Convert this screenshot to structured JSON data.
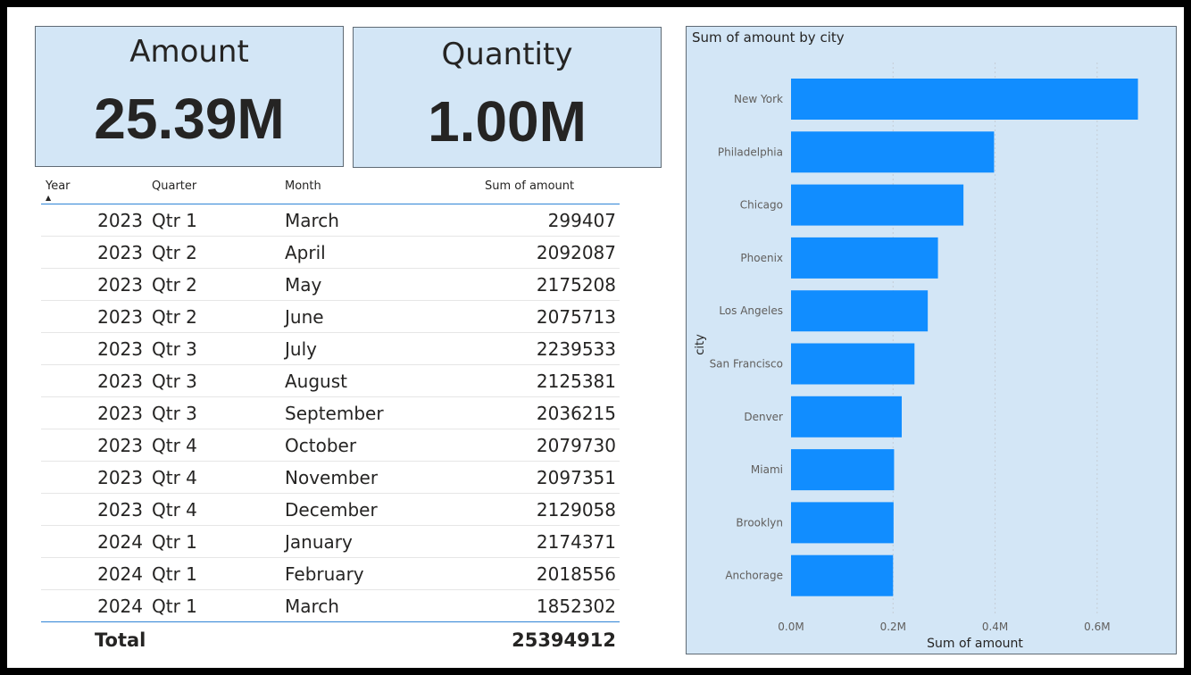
{
  "cards": {
    "amount": {
      "title": "Amount",
      "value": "25.39M"
    },
    "quantity": {
      "title": "Quantity",
      "value": "1.00M"
    }
  },
  "table": {
    "headers": {
      "year": "Year",
      "quarter": "Quarter",
      "month": "Month",
      "amount": "Sum of amount"
    },
    "sort": {
      "column": "Year",
      "direction": "ascending"
    },
    "rows": [
      {
        "year": "2023",
        "quarter": "Qtr 1",
        "month": "March",
        "amount": "299407"
      },
      {
        "year": "2023",
        "quarter": "Qtr 2",
        "month": "April",
        "amount": "2092087"
      },
      {
        "year": "2023",
        "quarter": "Qtr 2",
        "month": "May",
        "amount": "2175208"
      },
      {
        "year": "2023",
        "quarter": "Qtr 2",
        "month": "June",
        "amount": "2075713"
      },
      {
        "year": "2023",
        "quarter": "Qtr 3",
        "month": "July",
        "amount": "2239533"
      },
      {
        "year": "2023",
        "quarter": "Qtr 3",
        "month": "August",
        "amount": "2125381"
      },
      {
        "year": "2023",
        "quarter": "Qtr 3",
        "month": "September",
        "amount": "2036215"
      },
      {
        "year": "2023",
        "quarter": "Qtr 4",
        "month": "October",
        "amount": "2079730"
      },
      {
        "year": "2023",
        "quarter": "Qtr 4",
        "month": "November",
        "amount": "2097351"
      },
      {
        "year": "2023",
        "quarter": "Qtr 4",
        "month": "December",
        "amount": "2129058"
      },
      {
        "year": "2024",
        "quarter": "Qtr 1",
        "month": "January",
        "amount": "2174371"
      },
      {
        "year": "2024",
        "quarter": "Qtr 1",
        "month": "February",
        "amount": "2018556"
      },
      {
        "year": "2024",
        "quarter": "Qtr 1",
        "month": "March",
        "amount": "1852302"
      }
    ],
    "total": {
      "label": "Total",
      "value": "25394912"
    }
  },
  "chart_data": {
    "type": "bar",
    "orientation": "horizontal",
    "title": "Sum of amount by city",
    "xlabel": "Sum of amount",
    "ylabel": "city",
    "categories": [
      "New York",
      "Philadelphia",
      "Chicago",
      "Phoenix",
      "Los Angeles",
      "San Francisco",
      "Denver",
      "Miami",
      "Brooklyn",
      "Anchorage"
    ],
    "values": [
      680000,
      398000,
      338000,
      288000,
      268000,
      242000,
      217000,
      202000,
      201000,
      200000
    ],
    "xlim": [
      0,
      700000
    ],
    "xticks": [
      {
        "value": 0,
        "label": "0.0M"
      },
      {
        "value": 200000,
        "label": "0.2M"
      },
      {
        "value": 400000,
        "label": "0.4M"
      },
      {
        "value": 600000,
        "label": "0.6M"
      }
    ],
    "grid": "vertical-dotted",
    "bar_color": "#118dff",
    "background": "#d3e6f6"
  }
}
